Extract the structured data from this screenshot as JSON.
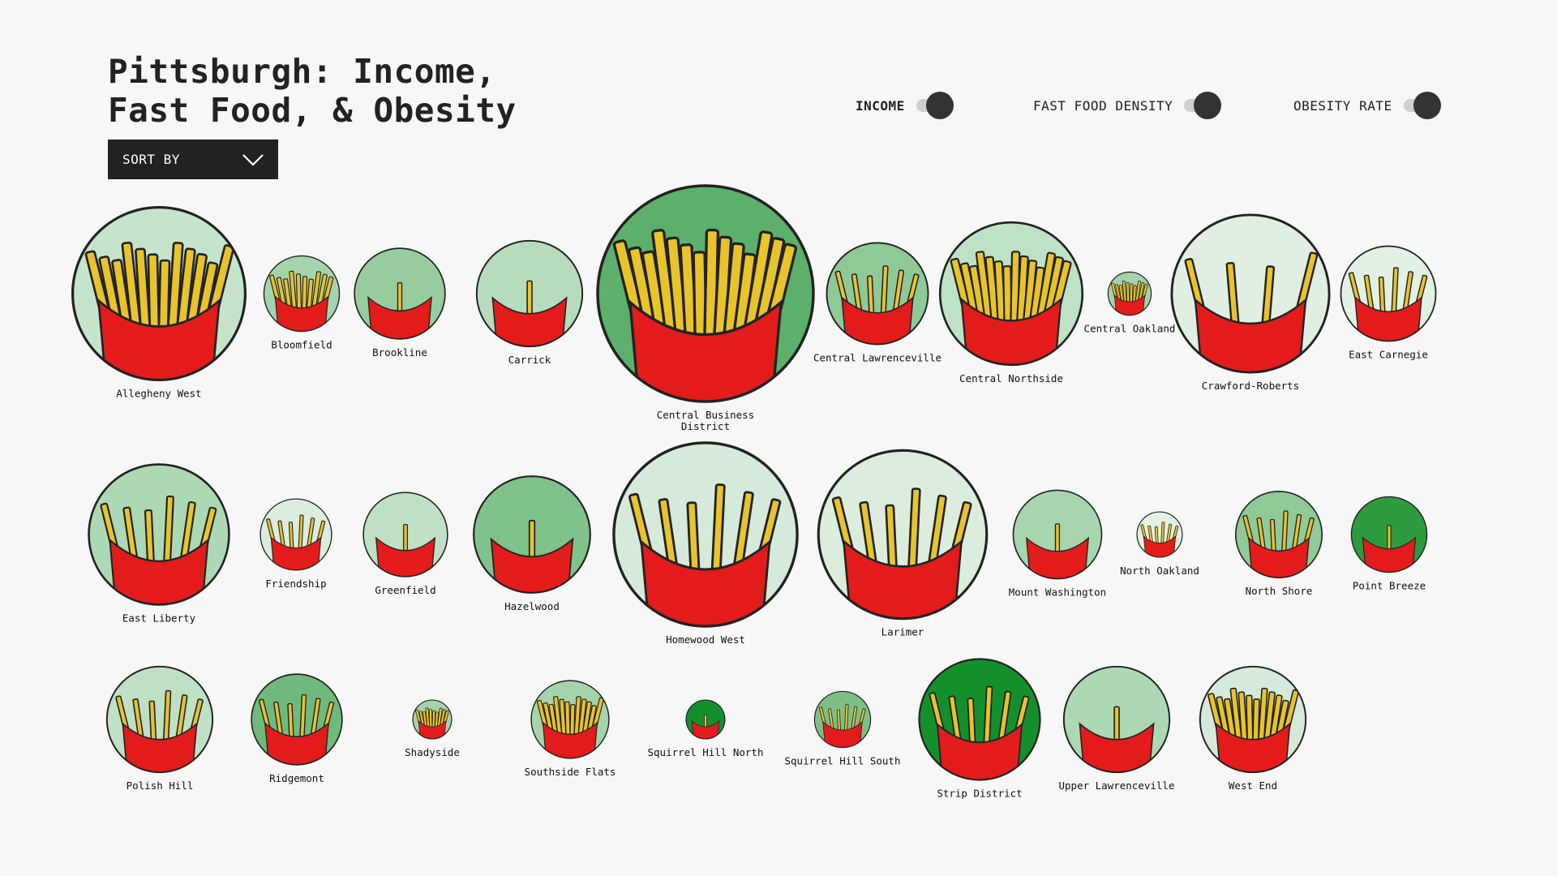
{
  "header": {
    "title_line1": "Pittsburgh: Income,",
    "title_line2": "Fast Food, & Obesity",
    "sort_label": "SORT BY"
  },
  "toggles": [
    {
      "label": "INCOME",
      "active": true
    },
    {
      "label": "FAST FOOD DENSITY",
      "active": false
    },
    {
      "label": "OBESITY RATE",
      "active": false
    }
  ],
  "colors": {
    "background": "#f7f7f7",
    "fry_cup": "#e31b1b",
    "fry": "#e8c32c",
    "outline": "#222222",
    "toggle_knob": "#333333",
    "sort_bg": "#222222"
  },
  "chart_data": {
    "type": "bubble",
    "encoding": {
      "circle_size": "income",
      "circle_color": "obesity rate",
      "fry_count": "fast food density"
    },
    "neighborhoods": [
      {
        "name": "Allegheny West",
        "size": 0.8,
        "green": "#c6e4cc",
        "fries": 12
      },
      {
        "name": "Bloomfield",
        "size": 0.35,
        "green": "#a5d3ad",
        "fries": 10
      },
      {
        "name": "Brookline",
        "size": 0.42,
        "green": "#97cc9f",
        "fries": 1
      },
      {
        "name": "Carrick",
        "size": 0.49,
        "green": "#b6dcbd",
        "fries": 1
      },
      {
        "name": "Central Business District",
        "size": 1.0,
        "green": "#5cb06c",
        "fries": 14
      },
      {
        "name": "Central Lawrenceville",
        "size": 0.47,
        "green": "#8fc998",
        "fries": 6
      },
      {
        "name": "Central Northside",
        "size": 0.66,
        "green": "#bfe1c5",
        "fries": 14
      },
      {
        "name": "Central Oakland",
        "size": 0.2,
        "green": "#a5d3ad",
        "fries": 10
      },
      {
        "name": "Crawford-Roberts",
        "size": 0.73,
        "green": "#e0efe2",
        "fries": 4
      },
      {
        "name": "East Carnegie",
        "size": 0.44,
        "green": "#e3f0e4",
        "fries": 6
      },
      {
        "name": "East Liberty",
        "size": 0.65,
        "green": "#add8b4",
        "fries": 6
      },
      {
        "name": "Friendship",
        "size": 0.33,
        "green": "#dcede0",
        "fries": 6
      },
      {
        "name": "Greenfield",
        "size": 0.39,
        "green": "#bfe0c5",
        "fries": 1
      },
      {
        "name": "Hazelwood",
        "size": 0.54,
        "green": "#80c28c",
        "fries": 1
      },
      {
        "name": "Homewood West",
        "size": 0.85,
        "green": "#d6eadb",
        "fries": 6
      },
      {
        "name": "Larimer",
        "size": 0.78,
        "green": "#dcedde",
        "fries": 6
      },
      {
        "name": "Mount Washington",
        "size": 0.41,
        "green": "#a7d5ae",
        "fries": 1
      },
      {
        "name": "North Oakland",
        "size": 0.21,
        "green": "#e3f0e4",
        "fries": 6
      },
      {
        "name": "North Shore",
        "size": 0.4,
        "green": "#8fca98",
        "fries": 6
      },
      {
        "name": "Point Breeze",
        "size": 0.35,
        "green": "#2e9b3e",
        "fries": 1
      },
      {
        "name": "Polish Hill",
        "size": 0.49,
        "green": "#bfe0c5",
        "fries": 6
      },
      {
        "name": "Ridgemont",
        "size": 0.42,
        "green": "#6fb97c",
        "fries": 6
      },
      {
        "name": "Shadyside",
        "size": 0.18,
        "green": "#a5d3ad",
        "fries": 10
      },
      {
        "name": "Southside Flats",
        "size": 0.36,
        "green": "#a5d3ad",
        "fries": 12
      },
      {
        "name": "Squirrel Hill North",
        "size": 0.18,
        "green": "#13902b",
        "fries": 1
      },
      {
        "name": "Squirrel Hill South",
        "size": 0.26,
        "green": "#7cc087",
        "fries": 6
      },
      {
        "name": "Strip District",
        "size": 0.56,
        "green": "#13902b",
        "fries": 6
      },
      {
        "name": "Upper Lawrenceville",
        "size": 0.49,
        "green": "#add8b4",
        "fries": 1
      },
      {
        "name": "West End",
        "size": 0.49,
        "green": "#d6eadb",
        "fries": 12
      }
    ]
  }
}
